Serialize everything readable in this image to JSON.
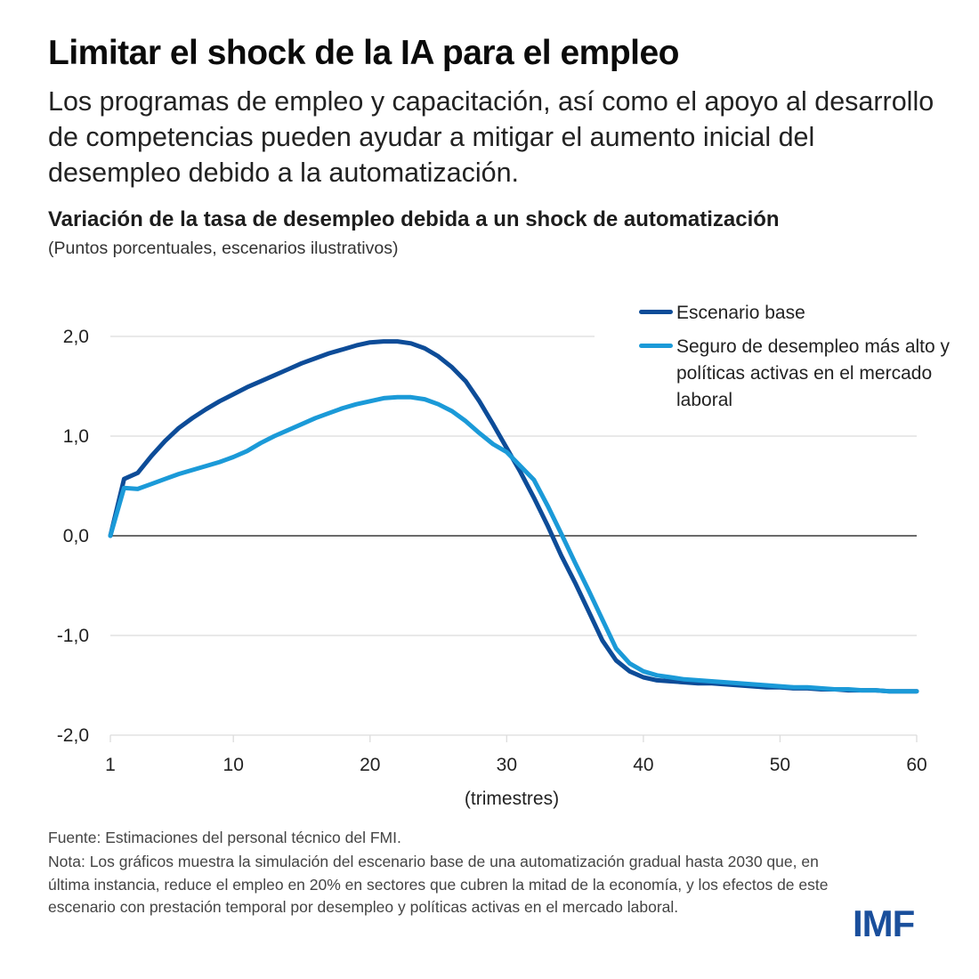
{
  "header": {
    "title": "Limitar el shock de la IA para el empleo",
    "subtitle": "Los programas de empleo y capacitación, así como el apoyo al desarrollo de competencias pueden ayudar a mitigar el aumento inicial del desempleo debido a la automatización."
  },
  "colors": {
    "base": "#0d4c98",
    "alt": "#1b9ad8",
    "grid": "#dcdcdc",
    "zero": "#111111",
    "logo": "#1a4f9c"
  },
  "chart_data": {
    "type": "line",
    "title": "Variación de la tasa de desempleo debida a un shock de automatización",
    "subtitle": "(Puntos porcentuales, escenarios ilustrativos)",
    "xlabel": "(trimestres)",
    "ylabel": "",
    "xlim": [
      1,
      60
    ],
    "ylim": [
      -2.0,
      2.0
    ],
    "x_ticks": [
      1,
      10,
      20,
      30,
      40,
      50,
      60
    ],
    "x_tick_labels": [
      "1",
      "10",
      "20",
      "30",
      "40",
      "50",
      "60"
    ],
    "y_ticks": [
      2.0,
      1.0,
      0.0,
      -1.0,
      -2.0
    ],
    "y_tick_labels": [
      "2,0",
      "1,0",
      "0,0",
      "-1,0",
      "-2,0"
    ],
    "grid": true,
    "legend_position": "top-right",
    "x": [
      1,
      2,
      3,
      4,
      5,
      6,
      7,
      8,
      9,
      10,
      11,
      12,
      13,
      14,
      15,
      16,
      17,
      18,
      19,
      20,
      21,
      22,
      23,
      24,
      25,
      26,
      27,
      28,
      29,
      30,
      31,
      32,
      33,
      34,
      35,
      36,
      37,
      38,
      39,
      40,
      41,
      42,
      43,
      44,
      45,
      46,
      47,
      48,
      49,
      50,
      51,
      52,
      53,
      54,
      55,
      56,
      57,
      58,
      59,
      60
    ],
    "series": [
      {
        "name": "Escenario base",
        "color": "#0d4c98",
        "values": [
          0,
          0.57,
          0.63,
          0.8,
          0.95,
          1.08,
          1.18,
          1.27,
          1.35,
          1.42,
          1.49,
          1.55,
          1.61,
          1.67,
          1.73,
          1.78,
          1.83,
          1.87,
          1.91,
          1.94,
          1.95,
          1.95,
          1.93,
          1.88,
          1.8,
          1.69,
          1.55,
          1.35,
          1.12,
          0.88,
          0.64,
          0.38,
          0.1,
          -0.2,
          -0.47,
          -0.76,
          -1.05,
          -1.25,
          -1.36,
          -1.42,
          -1.45,
          -1.46,
          -1.47,
          -1.48,
          -1.48,
          -1.49,
          -1.5,
          -1.51,
          -1.52,
          -1.52,
          -1.53,
          -1.53,
          -1.54,
          -1.54,
          -1.55,
          -1.55,
          -1.55,
          -1.56,
          -1.56,
          -1.56
        ]
      },
      {
        "name": "Seguro de desempleo más alto y políticas activas en el mercado laboral",
        "color": "#1b9ad8",
        "values": [
          0,
          0.48,
          0.47,
          0.52,
          0.57,
          0.62,
          0.66,
          0.7,
          0.74,
          0.79,
          0.85,
          0.93,
          1.0,
          1.06,
          1.12,
          1.18,
          1.23,
          1.28,
          1.32,
          1.35,
          1.38,
          1.39,
          1.39,
          1.37,
          1.32,
          1.25,
          1.15,
          1.03,
          0.92,
          0.84,
          0.7,
          0.56,
          0.3,
          0.02,
          -0.27,
          -0.55,
          -0.84,
          -1.13,
          -1.28,
          -1.36,
          -1.4,
          -1.42,
          -1.44,
          -1.45,
          -1.46,
          -1.47,
          -1.48,
          -1.49,
          -1.5,
          -1.51,
          -1.52,
          -1.52,
          -1.53,
          -1.54,
          -1.54,
          -1.55,
          -1.55,
          -1.56,
          -1.56,
          -1.56
        ]
      }
    ]
  },
  "legend": {
    "items": [
      {
        "label": "Escenario base"
      },
      {
        "label": "Seguro de desempleo más alto y políticas activas en el mercado laboral"
      }
    ]
  },
  "footer": {
    "source": "Fuente: Estimaciones del personal técnico del FMI.",
    "note": "Nota: Los gráficos muestra la simulación del escenario base de una automatización gradual hasta 2030 que, en última instancia, reduce el empleo en 20% en sectores que cubren la mitad de la economía, y los efectos de este escenario con prestación temporal por desempleo y políticas activas en el mercado laboral.",
    "logo": "IMF"
  }
}
